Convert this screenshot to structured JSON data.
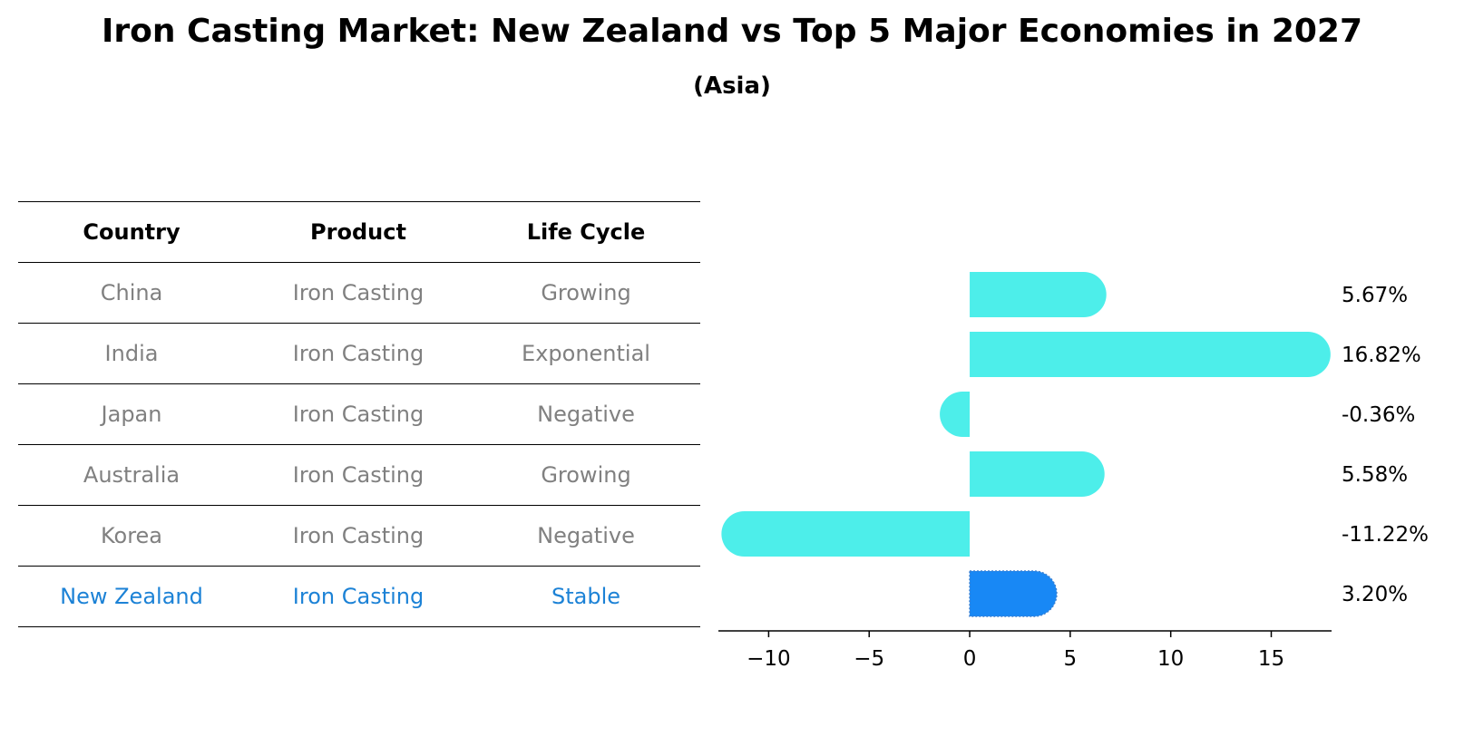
{
  "title": "Iron Casting Market: New Zealand vs Top 5 Major Economies in 2027",
  "subtitle": "(Asia)",
  "table": {
    "headers": [
      "Country",
      "Product",
      "Life Cycle"
    ],
    "rows": [
      {
        "country": "China",
        "product": "Iron Casting",
        "life_cycle": "Growing"
      },
      {
        "country": "India",
        "product": "Iron Casting",
        "life_cycle": "Exponential"
      },
      {
        "country": "Japan",
        "product": "Iron Casting",
        "life_cycle": "Negative"
      },
      {
        "country": "Australia",
        "product": "Iron Casting",
        "life_cycle": "Growing"
      },
      {
        "country": "Korea",
        "product": "Iron Casting",
        "life_cycle": "Negative"
      },
      {
        "country": "New Zealand",
        "product": "Iron Casting",
        "life_cycle": "Stable"
      }
    ]
  },
  "colors": {
    "bar": "#4deeea",
    "highlight_bar": "#1888f5",
    "highlight_text": "#1c82d6",
    "muted_text": "#808080"
  },
  "chart_data": {
    "type": "bar",
    "orientation": "horizontal",
    "categories": [
      "China",
      "India",
      "Japan",
      "Australia",
      "Korea",
      "New Zealand"
    ],
    "values": [
      5.67,
      16.82,
      -0.36,
      5.58,
      -11.22,
      3.2
    ],
    "value_labels": [
      "5.67%",
      "16.82%",
      "-0.36%",
      "5.58%",
      "-11.22%",
      "3.20%"
    ],
    "highlight_index": 5,
    "xlim": [
      -12.5,
      18
    ],
    "xticks": [
      -10,
      -5,
      0,
      5,
      10,
      15
    ],
    "xtick_labels": [
      "−10",
      "−5",
      "0",
      "5",
      "10",
      "15"
    ],
    "grid": false
  }
}
